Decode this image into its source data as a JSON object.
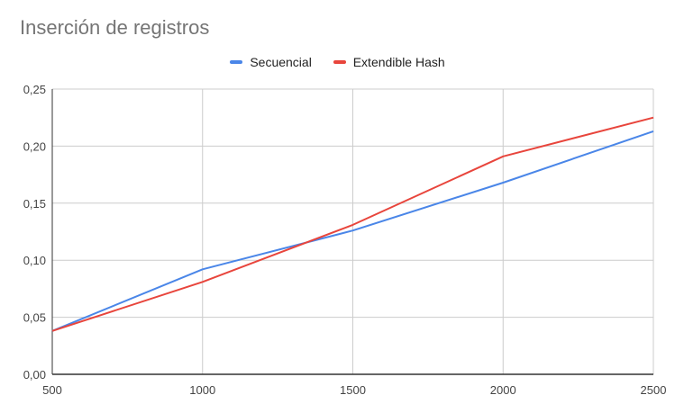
{
  "chart_data": {
    "type": "line",
    "title": "Inserción de registros",
    "x": [
      500,
      1000,
      1500,
      2000,
      2500
    ],
    "x_tick_labels": [
      "500",
      "1000",
      "1500",
      "2000",
      "2500"
    ],
    "y_tick_labels": [
      "0,00",
      "0,05",
      "0,10",
      "0,15",
      "0,20",
      "0,25"
    ],
    "y_ticks": [
      0,
      0.05,
      0.1,
      0.15,
      0.2,
      0.25
    ],
    "xlim": [
      500,
      2500
    ],
    "ylim": [
      0,
      0.25
    ],
    "grid": true,
    "legend_position": "top",
    "series": [
      {
        "name": "Secuencial",
        "color": "#4a86e8",
        "values": [
          0.038,
          0.092,
          0.126,
          0.168,
          0.213
        ]
      },
      {
        "name": "Extendible Hash",
        "color": "#e8453c",
        "values": [
          0.038,
          0.081,
          0.131,
          0.191,
          0.225
        ]
      }
    ]
  }
}
